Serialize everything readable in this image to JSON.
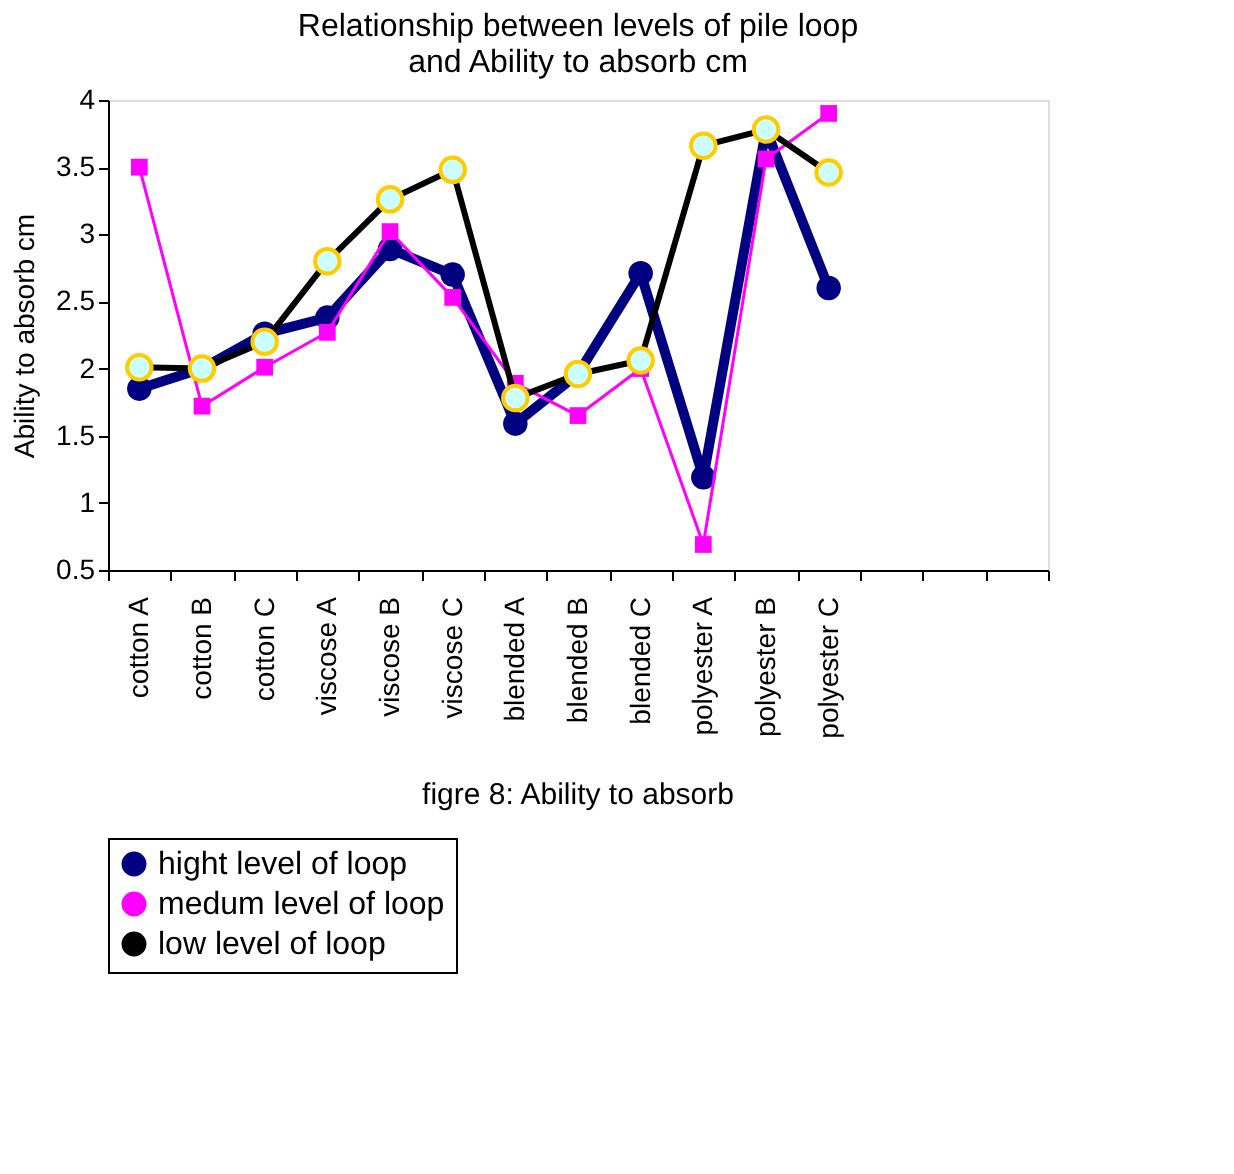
{
  "chart_data": {
    "type": "line",
    "title": [
      "Relationship between  levels of pile loop",
      "and Ability to absorb cm"
    ],
    "ylabel": "Ability to absorb cm",
    "categories": [
      "cotton A",
      "cotton B",
      "cotton C",
      "viscose A",
      "viscose B",
      "viscose C",
      "blended A",
      "blended B",
      "blended C",
      "polyester A",
      "polyester B",
      "polyester C",
      null,
      null,
      null
    ],
    "series": [
      {
        "name": "hight level of loop",
        "color": "#000080",
        "marker": "circle",
        "values": [
          1.85,
          2.0,
          2.26,
          2.38,
          2.89,
          2.7,
          1.59,
          1.96,
          2.71,
          1.19,
          3.78,
          2.6,
          null,
          null,
          null
        ]
      },
      {
        "name": "medum level of loop",
        "color": "#ff00ff",
        "marker": "square",
        "values": [
          3.5,
          1.72,
          2.01,
          2.27,
          3.02,
          2.53,
          1.89,
          1.65,
          2.0,
          0.69,
          3.56,
          3.9,
          null,
          null,
          null
        ]
      },
      {
        "name": "low level of loop",
        "color": "#000000",
        "marker": "circle",
        "values": [
          2.01,
          2.0,
          2.2,
          2.8,
          3.26,
          3.48,
          1.78,
          1.96,
          2.06,
          3.66,
          3.78,
          3.46,
          null,
          null,
          null
        ]
      }
    ],
    "ylim": [
      0.5,
      4
    ],
    "yticks": [
      0.5,
      1,
      1.5,
      2,
      2.5,
      3,
      3.5,
      4
    ],
    "annotations": [
      "figre 8: Ability to absorb"
    ],
    "legend": "bottom",
    "grid": false
  }
}
